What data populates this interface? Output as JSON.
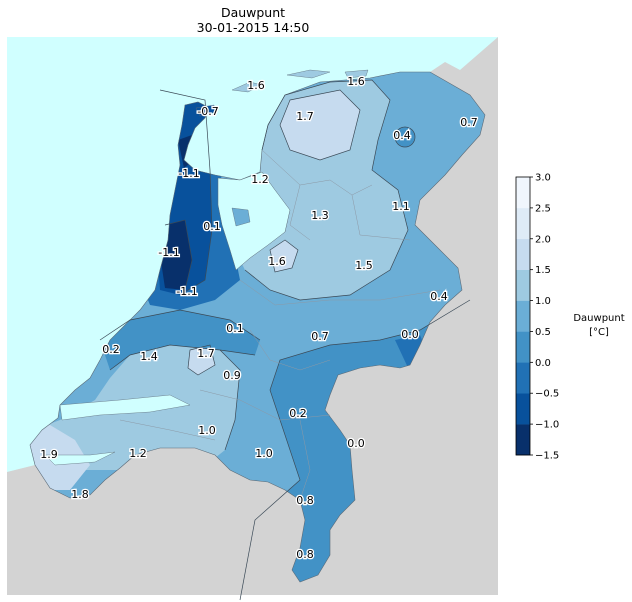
{
  "map": {
    "title": "Dauwpunt",
    "timestamp": "30-01-2015 14:50",
    "colors": {
      "sea": "#d0ffff",
      "land_outside": "#d3d3d3",
      "border": "#7a8a99",
      "contour": "#3b4a57"
    },
    "colormap": {
      "name": "Blues_r",
      "levels": [
        -1.5,
        -1.0,
        -0.5,
        0.0,
        0.5,
        1.0,
        1.5,
        2.0,
        2.5,
        3.0
      ],
      "band_colors": [
        "#08306b",
        "#08519c",
        "#2171b5",
        "#4292c6",
        "#6baed6",
        "#9ecae1",
        "#c6dbef",
        "#deebf7",
        "#f0f6fd"
      ]
    },
    "colorbar": {
      "label_line1": "Dauwpunt",
      "label_line2": "[°C]",
      "ticks": [
        "3.0",
        "2.5",
        "2.0",
        "1.5",
        "1.0",
        "0.5",
        "0.0",
        "−0.5",
        "−1.0",
        "−1.5"
      ]
    },
    "labels": [
      {
        "text": "1.6"
      },
      {
        "text": "1.6"
      },
      {
        "text": "-0.7"
      },
      {
        "text": "1.7"
      },
      {
        "text": "0.4"
      },
      {
        "text": "0.7"
      },
      {
        "text": "-1.1"
      },
      {
        "text": "1.2"
      },
      {
        "text": "1.3"
      },
      {
        "text": "1.1"
      },
      {
        "text": "0.1"
      },
      {
        "text": "-1.1"
      },
      {
        "text": "1.6"
      },
      {
        "text": "1.5"
      },
      {
        "text": "-1.1"
      },
      {
        "text": "0.4"
      },
      {
        "text": "0.1"
      },
      {
        "text": "0.7"
      },
      {
        "text": "0.0"
      },
      {
        "text": "0.2"
      },
      {
        "text": "1.4"
      },
      {
        "text": "1.7"
      },
      {
        "text": "0.9"
      },
      {
        "text": "0.2"
      },
      {
        "text": "1.0"
      },
      {
        "text": "0.0"
      },
      {
        "text": "1.9"
      },
      {
        "text": "1.2"
      },
      {
        "text": "1.0"
      },
      {
        "text": "1.8"
      },
      {
        "text": "0.8"
      },
      {
        "text": "0.8"
      }
    ]
  }
}
